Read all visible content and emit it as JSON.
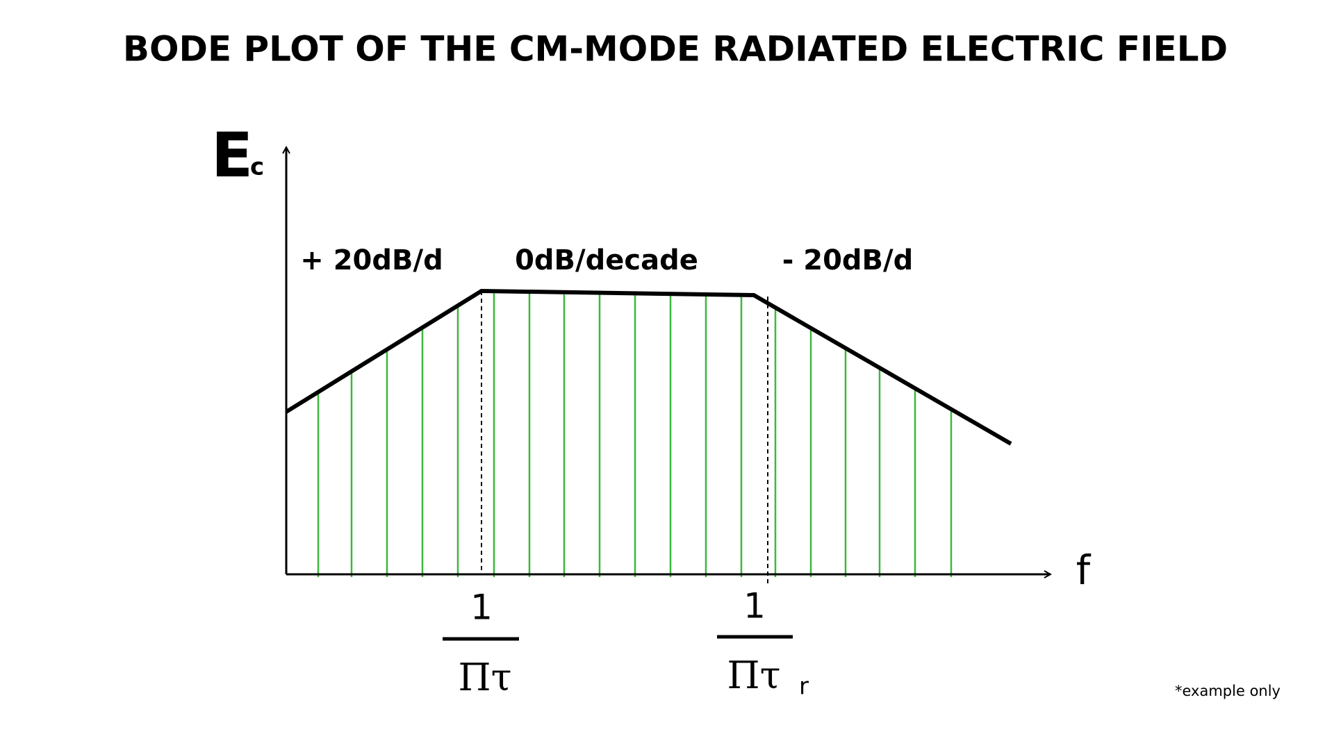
{
  "title": "BODE PLOT OF THE CM-MODE  RADIATED ELECTRIC FIELD",
  "y_axis": {
    "symbol": "E",
    "subscript": "c"
  },
  "x_axis": {
    "symbol": "f"
  },
  "slopes": [
    "+ 20dB/d",
    "0dB/decade",
    "- 20dB/d"
  ],
  "breakpoints": [
    {
      "numerator": "1",
      "denominator": "Πτ"
    },
    {
      "numerator": "1",
      "denominator": "Πτ",
      "subscript": "r"
    }
  ],
  "footnote": "*example only"
}
